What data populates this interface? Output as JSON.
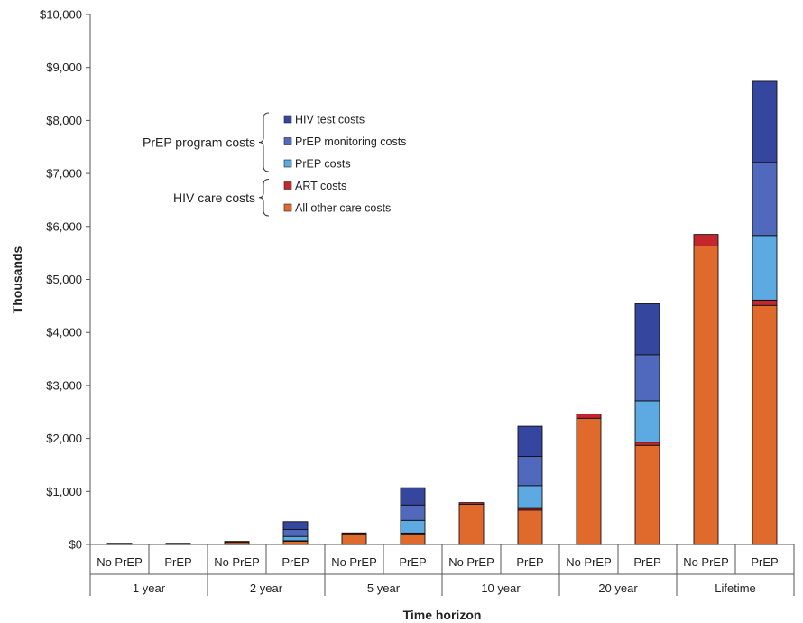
{
  "chart_data": {
    "type": "bar",
    "stacked": true,
    "ylabel": "Thousands",
    "xlabel": "Time horizon",
    "ylim": [
      0,
      10000
    ],
    "y_ticks": [
      "$0",
      "$1,000",
      "$2,000",
      "$3,000",
      "$4,000",
      "$5,000",
      "$6,000",
      "$7,000",
      "$8,000",
      "$9,000",
      "$10,000"
    ],
    "y_tick_values": [
      0,
      1000,
      2000,
      3000,
      4000,
      5000,
      6000,
      7000,
      8000,
      9000,
      10000
    ],
    "groups": [
      "1 year",
      "2 year",
      "5 year",
      "10 year",
      "20 year",
      "Lifetime"
    ],
    "categories": [
      "No PrEP",
      "PrEP",
      "No PrEP",
      "PrEP",
      "No PrEP",
      "PrEP",
      "No PrEP",
      "PrEP",
      "No PrEP",
      "PrEP",
      "No PrEP",
      "PrEP"
    ],
    "series": [
      {
        "name": "All other care costs",
        "color": "#E06A2B",
        "values": [
          5,
          5,
          40,
          60,
          200,
          200,
          760,
          650,
          2380,
          1870,
          5630,
          4510
        ]
      },
      {
        "name": "ART costs",
        "color": "#C4262E",
        "values": [
          1,
          1,
          10,
          10,
          15,
          15,
          30,
          30,
          80,
          60,
          220,
          100
        ]
      },
      {
        "name": "PrEP costs",
        "color": "#5DA9E1",
        "values": [
          0,
          0,
          0,
          80,
          0,
          240,
          0,
          430,
          0,
          780,
          0,
          1220
        ]
      },
      {
        "name": "PrEP monitoring costs",
        "color": "#5069BC",
        "values": [
          0,
          0,
          0,
          130,
          0,
          290,
          0,
          550,
          0,
          870,
          0,
          1380
        ]
      },
      {
        "name": "HIV test costs",
        "color": "#34469E",
        "values": [
          0,
          0,
          0,
          150,
          0,
          325,
          0,
          570,
          0,
          960,
          0,
          1530
        ]
      }
    ],
    "legend_groups": [
      {
        "label": "PrEP program costs",
        "items": [
          "HIV test costs",
          "PrEP monitoring costs",
          "PrEP costs"
        ]
      },
      {
        "label": "HIV care costs",
        "items": [
          "ART costs",
          "All other care costs"
        ]
      }
    ],
    "legend_position": "top-left"
  }
}
